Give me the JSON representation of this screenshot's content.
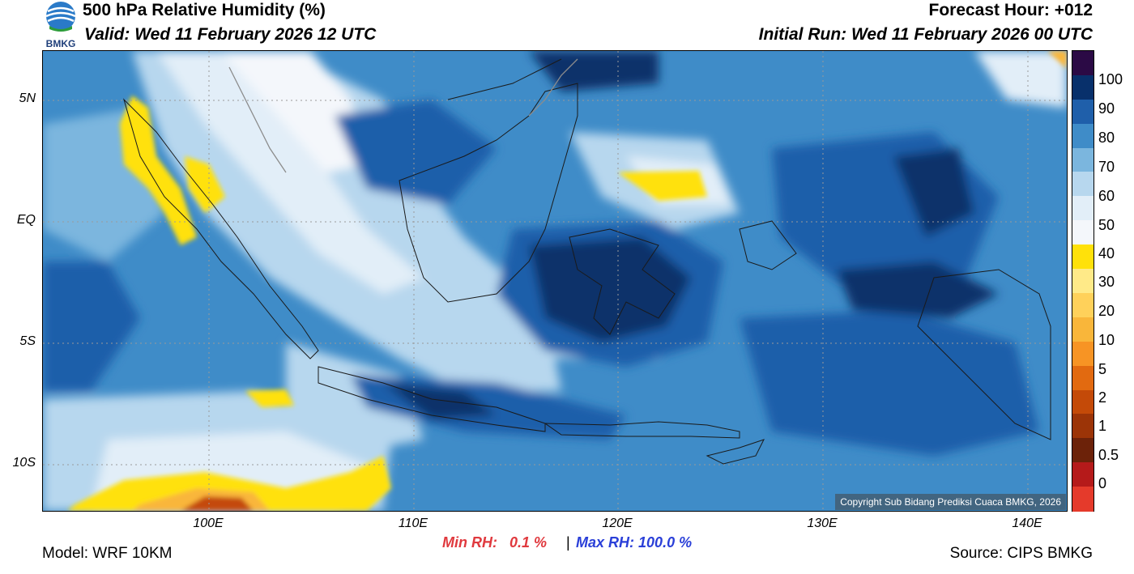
{
  "header": {
    "title": "500 hPa Relative Humidity (%)",
    "valid": "Valid: Wed 11 February 2026 12 UTC",
    "forecast_hour": "Forecast Hour: +012",
    "initial_run": "Initial Run: Wed 11 February 2026 00 UTC"
  },
  "logo": {
    "text": "BMKG"
  },
  "map": {
    "lat_labels": [
      "5N",
      "EQ",
      "5S",
      "10S"
    ],
    "lon_labels": [
      "100E",
      "110E",
      "120E",
      "130E",
      "140E"
    ],
    "copyright": "Copyright Sub Bidang Prediksi Cuaca BMKG, 2026"
  },
  "colorbar": {
    "labels": [
      "100",
      "90",
      "80",
      "70",
      "60",
      "50",
      "40",
      "30",
      "20",
      "10",
      "5",
      "2",
      "1",
      "0.5",
      "0"
    ],
    "colors": [
      "#2b0a45",
      "#08306b",
      "#1f5faa",
      "#3f8cc8",
      "#7bb6de",
      "#b7d7ee",
      "#e2eef8",
      "#f4f7fb",
      "#ffe10a",
      "#ffea88",
      "#ffd15a",
      "#f9b63a",
      "#f79424",
      "#e26a10",
      "#c44a08",
      "#9c3407",
      "#6c2209",
      "#b51a1a",
      "#e53a2b"
    ]
  },
  "stats": {
    "min_label": "Min RH:",
    "min_value": "0.1 %",
    "separator": "|",
    "max_label": "Max RH:",
    "max_value": "100.0 %"
  },
  "footer": {
    "model": "Model: WRF 10KM",
    "source": "Source: CIPS BMKG"
  }
}
